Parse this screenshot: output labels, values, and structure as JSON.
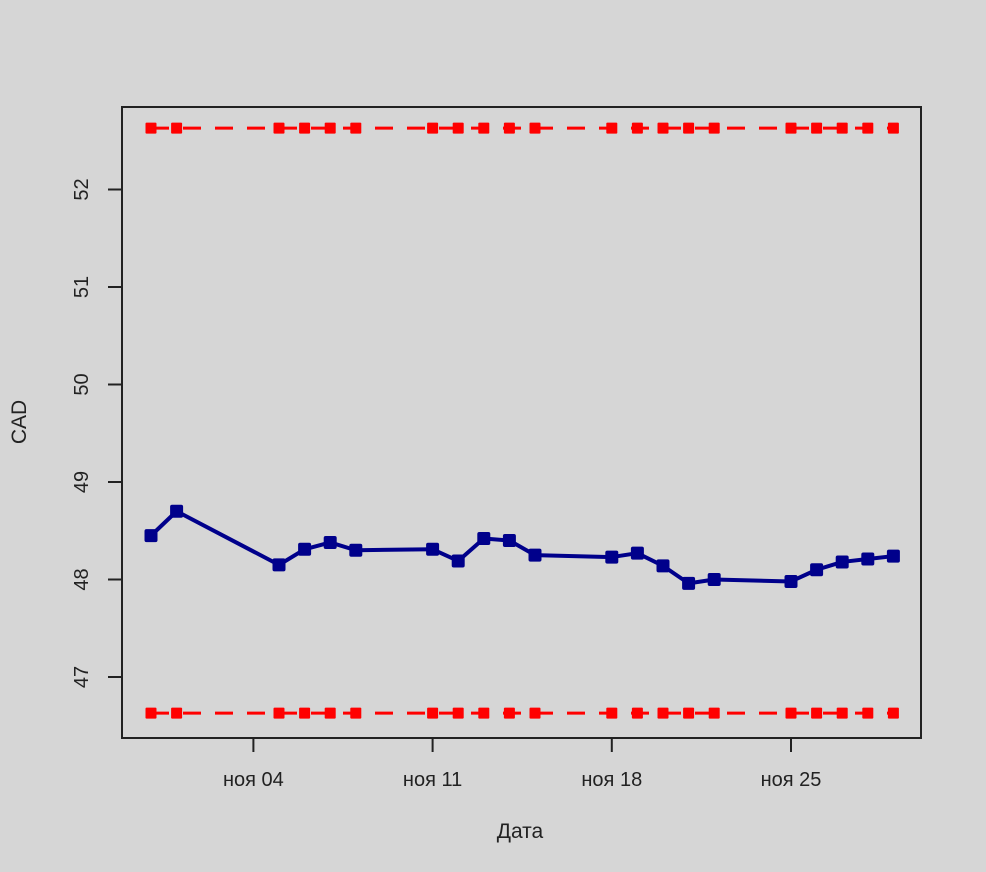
{
  "chart_data": {
    "type": "line",
    "xlabel": "Дата",
    "ylabel": "CAD",
    "ylim": [
      46.58,
      52.8
    ],
    "x_ticks": [
      "ноя 04",
      "ноя 11",
      "ноя 18",
      "ноя 25"
    ],
    "y_ticks": [
      "47",
      "48",
      "49",
      "50",
      "51",
      "52"
    ],
    "grid": false,
    "legend": "none",
    "series": [
      {
        "color": "#00008b",
        "style": "solid-with-square-markers",
        "x": [
          "2013-10-31",
          "2013-11-01",
          "2013-11-05",
          "2013-11-06",
          "2013-11-07",
          "2013-11-08",
          "2013-11-11",
          "2013-11-12",
          "2013-11-13",
          "2013-11-14",
          "2013-11-15",
          "2013-11-18",
          "2013-11-19",
          "2013-11-20",
          "2013-11-21",
          "2013-11-22",
          "2013-11-25",
          "2013-11-26",
          "2013-11-27",
          "2013-11-28",
          "2013-11-29"
        ],
        "values": [
          48.45,
          48.7,
          48.15,
          48.31,
          48.38,
          48.3,
          48.31,
          48.19,
          48.42,
          48.4,
          48.25,
          48.23,
          48.27,
          48.14,
          47.96,
          48.0,
          47.98,
          48.1,
          48.18,
          48.21,
          48.24
        ]
      },
      {
        "color": "#ff0000",
        "style": "dashed-with-square-markers",
        "x": [
          "2013-10-31",
          "2013-11-01",
          "2013-11-05",
          "2013-11-06",
          "2013-11-07",
          "2013-11-08",
          "2013-11-11",
          "2013-11-12",
          "2013-11-13",
          "2013-11-14",
          "2013-11-15",
          "2013-11-18",
          "2013-11-19",
          "2013-11-20",
          "2013-11-21",
          "2013-11-22",
          "2013-11-25",
          "2013-11-26",
          "2013-11-27",
          "2013-11-28",
          "2013-11-29"
        ],
        "values": [
          52.63,
          52.63,
          52.63,
          52.63,
          52.63,
          52.63,
          52.63,
          52.63,
          52.63,
          52.63,
          52.63,
          52.63,
          52.63,
          52.63,
          52.63,
          52.63,
          52.63,
          52.63,
          52.63,
          52.63,
          52.63
        ]
      },
      {
        "color": "#ff0000",
        "style": "dashed-with-square-markers",
        "x": [
          "2013-10-31",
          "2013-11-01",
          "2013-11-05",
          "2013-11-06",
          "2013-11-07",
          "2013-11-08",
          "2013-11-11",
          "2013-11-12",
          "2013-11-13",
          "2013-11-14",
          "2013-11-15",
          "2013-11-18",
          "2013-11-19",
          "2013-11-20",
          "2013-11-21",
          "2013-11-22",
          "2013-11-25",
          "2013-11-26",
          "2013-11-27",
          "2013-11-28",
          "2013-11-29"
        ],
        "values": [
          46.63,
          46.63,
          46.63,
          46.63,
          46.63,
          46.63,
          46.63,
          46.63,
          46.63,
          46.63,
          46.63,
          46.63,
          46.63,
          46.63,
          46.63,
          46.63,
          46.63,
          46.63,
          46.63,
          46.63,
          46.63
        ]
      }
    ]
  }
}
